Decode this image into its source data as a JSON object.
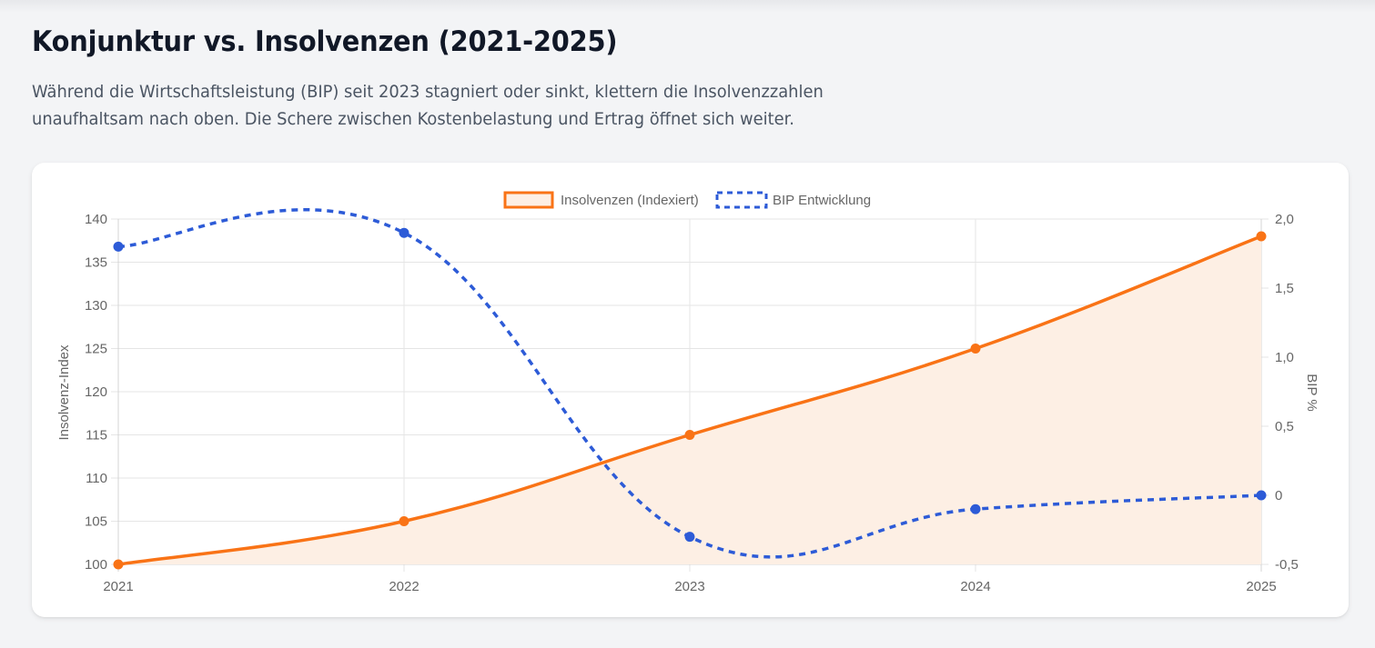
{
  "page": {
    "title": "Konjunktur vs. Insolvenzen (2021-2025)",
    "description": "Während die Wirtschaftsleistung (BIP) seit 2023 stagniert oder sinkt, klettern die Insolvenzzahlen unaufhaltsam nach oben. Die Schere zwischen Kostenbelastung und Ertrag öffnet sich weiter."
  },
  "colors": {
    "insolvency": "#f97316",
    "insolvency_fill": "#fdefe4",
    "bip": "#2d5bd7",
    "grid": "#e5e5e5",
    "tick": "#666666"
  },
  "chart_data": {
    "type": "line",
    "title": "",
    "categories": [
      "2021",
      "2022",
      "2023",
      "2024",
      "2025"
    ],
    "legend_position": "top",
    "grid": true,
    "series": [
      {
        "name": "Insolvenzen (Indexiert)",
        "axis": "left",
        "values": [
          100,
          105,
          115,
          125,
          138
        ],
        "style": "solid",
        "fill": true,
        "color": "#f97316"
      },
      {
        "name": "BIP Entwicklung",
        "axis": "right",
        "values": [
          1.8,
          1.9,
          -0.3,
          -0.1,
          0.0
        ],
        "style": "dashed",
        "fill": false,
        "color": "#2d5bd7"
      }
    ],
    "y_left": {
      "label": "Insolvenz-Index",
      "range": [
        100,
        140
      ],
      "ticks": [
        100,
        105,
        110,
        115,
        120,
        125,
        130,
        135,
        140
      ],
      "tick_labels": [
        "100",
        "105",
        "110",
        "115",
        "120",
        "125",
        "130",
        "135",
        "140"
      ]
    },
    "y_right": {
      "label": "BIP %",
      "range": [
        -0.5,
        2.0
      ],
      "ticks": [
        -0.5,
        0,
        0.5,
        1.0,
        1.5,
        2.0
      ],
      "tick_labels": [
        "-0,5",
        "0",
        "0,5",
        "1,0",
        "1,5",
        "2,0"
      ]
    },
    "xlabel": ""
  }
}
